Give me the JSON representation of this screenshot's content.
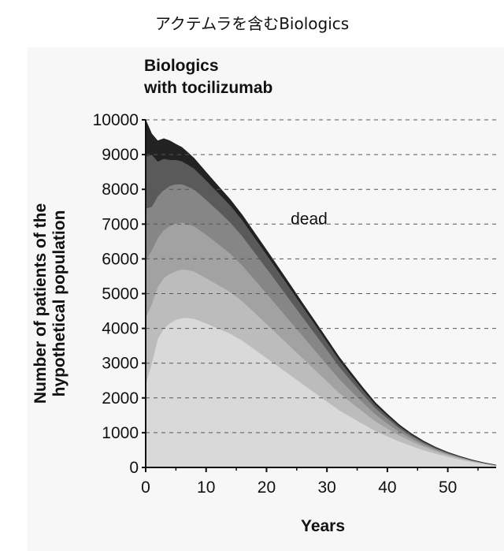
{
  "page": {
    "title": "アクテムラを含むBiologics"
  },
  "chart_data": {
    "type": "area",
    "panel_title": [
      "Biologics",
      "with tocilizumab"
    ],
    "xlabel": "Years",
    "ylabel": [
      "Number of patients of the",
      "hypothetical population"
    ],
    "xlim": [
      0,
      58
    ],
    "ylim": [
      0,
      10000
    ],
    "x_ticks": [
      0,
      10,
      20,
      30,
      40,
      50
    ],
    "y_ticks": [
      0,
      1000,
      2000,
      3000,
      4000,
      5000,
      6000,
      7000,
      8000,
      9000,
      10000
    ],
    "grid": "horizontal dashed",
    "annotations": [
      {
        "text": "dead",
        "x": 24,
        "y": 7000
      }
    ],
    "x": [
      0,
      1,
      2,
      3,
      4,
      5,
      6,
      7,
      8,
      10,
      12,
      14,
      16,
      18,
      20,
      22,
      24,
      26,
      28,
      30,
      32,
      34,
      36,
      38,
      40,
      42,
      44,
      46,
      48,
      50,
      52,
      54,
      56,
      58
    ],
    "series": [
      {
        "color": "#d9d9d9",
        "values": [
          2400,
          3000,
          3700,
          4000,
          4150,
          4250,
          4300,
          4300,
          4280,
          4150,
          4000,
          3850,
          3650,
          3400,
          3150,
          2900,
          2650,
          2400,
          2150,
          1900,
          1650,
          1450,
          1250,
          1050,
          900,
          750,
          620,
          500,
          400,
          310,
          230,
          160,
          100,
          50
        ]
      },
      {
        "color": "#bcbcbc",
        "values": [
          1900,
          1700,
          1500,
          1450,
          1420,
          1400,
          1400,
          1380,
          1360,
          1300,
          1250,
          1200,
          1130,
          1060,
          980,
          900,
          820,
          740,
          660,
          580,
          500,
          420,
          350,
          280,
          220,
          170,
          130,
          100,
          70,
          50,
          35,
          25,
          15,
          8
        ]
      },
      {
        "color": "#a2a2a2",
        "values": [
          1650,
          1550,
          1400,
          1380,
          1380,
          1370,
          1350,
          1320,
          1300,
          1250,
          1180,
          1100,
          1030,
          950,
          880,
          800,
          720,
          640,
          560,
          480,
          400,
          330,
          260,
          200,
          150,
          110,
          80,
          55,
          40,
          28,
          20,
          12,
          8,
          4
        ]
      },
      {
        "color": "#868686",
        "values": [
          1500,
          1250,
          1200,
          1150,
          1150,
          1130,
          1100,
          1080,
          1060,
          1000,
          950,
          900,
          840,
          780,
          720,
          660,
          600,
          540,
          480,
          420,
          360,
          290,
          230,
          180,
          140,
          100,
          70,
          50,
          35,
          25,
          18,
          10,
          6,
          3
        ]
      },
      {
        "color": "#5a5a5a",
        "values": [
          1500,
          1500,
          1000,
          900,
          750,
          700,
          660,
          630,
          600,
          560,
          520,
          490,
          460,
          430,
          400,
          370,
          340,
          300,
          270,
          230,
          190,
          160,
          130,
          100,
          80,
          60,
          45,
          35,
          25,
          17,
          12,
          8,
          5,
          3
        ]
      },
      {
        "color": "#222222",
        "values": [
          1050,
          600,
          600,
          580,
          550,
          450,
          400,
          350,
          300,
          240,
          200,
          170,
          150,
          140,
          130,
          120,
          110,
          100,
          95,
          90,
          85,
          80,
          70,
          60,
          50,
          40,
          30,
          22,
          15,
          10,
          7,
          5,
          3,
          2
        ]
      }
    ]
  }
}
